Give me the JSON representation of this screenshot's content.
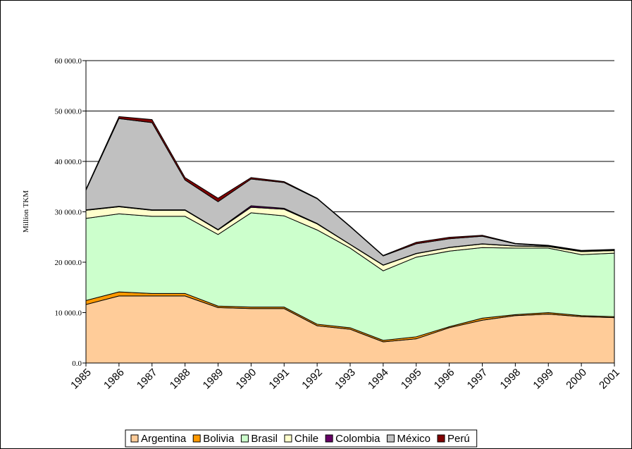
{
  "chart_data": {
    "type": "stacked_area",
    "y_label": "Million TKM",
    "categories": [
      "1985",
      "1986",
      "1987",
      "1988",
      "1989",
      "1990",
      "1991",
      "1992",
      "1993",
      "1994",
      "1995",
      "1996",
      "1997",
      "1998",
      "1999",
      "2000",
      "2001"
    ],
    "series": [
      {
        "name": "Argentina",
        "color": "#ffcc99",
        "values": [
          11600,
          13300,
          13300,
          13300,
          11000,
          10800,
          10800,
          7400,
          6700,
          4200,
          4800,
          7000,
          8500,
          9400,
          9700,
          9200,
          9000
        ]
      },
      {
        "name": "Bolivia",
        "color": "#ff9900",
        "values": [
          800,
          800,
          500,
          500,
          300,
          300,
          300,
          300,
          300,
          300,
          400,
          200,
          400,
          200,
          300,
          200,
          200
        ]
      },
      {
        "name": "Brasil",
        "color": "#ccffcc",
        "values": [
          16300,
          15500,
          15300,
          15300,
          14200,
          18700,
          18100,
          18700,
          15800,
          13800,
          15800,
          15000,
          14000,
          13200,
          12800,
          12100,
          12600
        ]
      },
      {
        "name": "Chile",
        "color": "#ffffcc",
        "values": [
          1600,
          1400,
          1200,
          1200,
          900,
          1100,
          1300,
          1200,
          700,
          1100,
          700,
          700,
          700,
          400,
          300,
          600,
          500
        ]
      },
      {
        "name": "Colombia",
        "color": "#660066",
        "values": [
          100,
          100,
          100,
          100,
          100,
          300,
          200,
          100,
          50,
          50,
          50,
          50,
          50,
          50,
          50,
          50,
          50
        ]
      },
      {
        "name": "México",
        "color": "#c0c0c0",
        "values": [
          3900,
          17400,
          17300,
          5900,
          5500,
          5300,
          5100,
          4900,
          3500,
          1800,
          1900,
          1700,
          1500,
          400,
          100,
          100,
          100
        ]
      },
      {
        "name": "Perú",
        "color": "#800000",
        "values": [
          200,
          400,
          600,
          500,
          700,
          300,
          200,
          100,
          100,
          100,
          300,
          300,
          200,
          100,
          100,
          100,
          100
        ]
      }
    ],
    "ylim": [
      0,
      60000
    ],
    "yticks": [
      {
        "value": 0,
        "label": "0.0"
      },
      {
        "value": 10000,
        "label": "10 000.0"
      },
      {
        "value": 20000,
        "label": "20 000.0"
      },
      {
        "value": 30000,
        "label": "30 000.0"
      },
      {
        "value": 40000,
        "label": "40 000.0"
      },
      {
        "value": 50000,
        "label": "50 000.0"
      },
      {
        "value": 60000,
        "label": "60 000.0"
      }
    ],
    "grid": true,
    "legend": "bottom"
  }
}
